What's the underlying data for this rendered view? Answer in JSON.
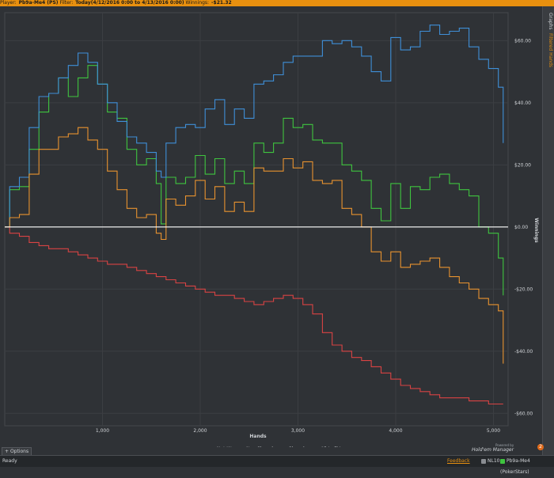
{
  "header": {
    "player_label": "Player:",
    "player_value": "Pb9a-Me4 (PS)",
    "filter_label": "Filter:",
    "filter_value": "Today(4/12/2016 0:00 to 4/13/2016 0:00)",
    "winnings_label": "Winnings:",
    "winnings_value": "-$21.32"
  },
  "sidebar": {
    "tab_graphs": "Graphs",
    "tab_filtered": "Filtered Hands"
  },
  "options_button": "Options",
  "brand": {
    "powered_by": "Powered by",
    "name": "Hold'em Manager",
    "version": "2"
  },
  "status": {
    "ready": "Ready",
    "feedback": "Feedback",
    "stake": "NL10",
    "player": "Pb9a-Me4 (PokerStars)"
  },
  "colors": {
    "net_won": "#3fc43f",
    "non_showdown": "#d94343",
    "showdown": "#3f8fd8",
    "allin_ev": "#e8922f",
    "zero_line": "#ffffff",
    "grid": "#3c3f43",
    "background": "#2f3236"
  },
  "chart_data": {
    "type": "line",
    "xlabel": "Hands",
    "ylabel": "Winnings",
    "xlim": [
      0,
      5150
    ],
    "ylim": [
      -64,
      69
    ],
    "x_ticks": [
      1000,
      2000,
      3000,
      4000,
      5000
    ],
    "x_tick_labels": [
      "1,000",
      "2,000",
      "3,000",
      "4,000",
      "5,000"
    ],
    "y_ticks": [
      60,
      40,
      20,
      0,
      -20,
      -40,
      -60
    ],
    "y_tick_labels": [
      "$60.00",
      "$40.00",
      "$20.00",
      "$0.00",
      "-$20.00",
      "-$40.00",
      "-$60.00"
    ],
    "grid": true,
    "legend": "bottom-center",
    "x": [
      0,
      50,
      150,
      250,
      350,
      450,
      550,
      650,
      750,
      850,
      950,
      1050,
      1150,
      1250,
      1350,
      1450,
      1550,
      1600,
      1650,
      1750,
      1850,
      1950,
      2050,
      2150,
      2250,
      2350,
      2450,
      2550,
      2650,
      2750,
      2850,
      2950,
      3050,
      3150,
      3250,
      3350,
      3450,
      3550,
      3650,
      3750,
      3850,
      3950,
      4050,
      4150,
      4250,
      4350,
      4450,
      4550,
      4650,
      4750,
      4850,
      4950,
      5050,
      5100
    ],
    "series": [
      {
        "name": "Net Won",
        "color_key": "net_won",
        "values": [
          0,
          12,
          13,
          25,
          37,
          43,
          48,
          42,
          48,
          52,
          46,
          37,
          35,
          25,
          20,
          22,
          14,
          1,
          16,
          14,
          16,
          23,
          17,
          22,
          14,
          18,
          14,
          27,
          24,
          27,
          35,
          32,
          33,
          28,
          27,
          27,
          20,
          18,
          15,
          6,
          2,
          14,
          6,
          13,
          12,
          16,
          17,
          14,
          12,
          10,
          0,
          -2,
          -10,
          -22
        ]
      },
      {
        "name": "Non Showdown",
        "color_key": "non_showdown",
        "values": [
          0,
          -2,
          -3,
          -5,
          -6,
          -7,
          -7,
          -8,
          -9,
          -10,
          -11,
          -12,
          -12,
          -13,
          -14,
          -15,
          -16,
          -16,
          -17,
          -18,
          -19,
          -20,
          -21,
          -22,
          -22,
          -23,
          -24,
          -25,
          -24,
          -23,
          -22,
          -23,
          -25,
          -28,
          -34,
          -38,
          -40,
          -42,
          -43,
          -45,
          -47,
          -49,
          -51,
          -52,
          -53,
          -54,
          -55,
          -55,
          -55,
          -56,
          -56,
          -57,
          -57,
          -57
        ]
      },
      {
        "name": "Showdown",
        "color_key": "showdown",
        "values": [
          0,
          13,
          16,
          32,
          42,
          43,
          48,
          52,
          56,
          53,
          46,
          40,
          34,
          29,
          27,
          24,
          18,
          16,
          27,
          32,
          33,
          32,
          38,
          41,
          33,
          38,
          35,
          46,
          47,
          49,
          53,
          55,
          55,
          55,
          60,
          59,
          60,
          58,
          55,
          50,
          47,
          61,
          57,
          58,
          63,
          65,
          62,
          63,
          64,
          58,
          54,
          51,
          45,
          27
        ]
      },
      {
        "name": "All-In EV",
        "color_key": "allin_ev",
        "values": [
          0,
          3,
          4,
          17,
          25,
          25,
          29,
          30,
          32,
          28,
          25,
          18,
          12,
          6,
          3,
          4,
          -2,
          -4,
          9,
          7,
          10,
          15,
          9,
          13,
          5,
          8,
          5,
          19,
          18,
          18,
          22,
          19,
          21,
          15,
          14,
          15,
          6,
          4,
          0,
          -8,
          -11,
          -8,
          -13,
          -12,
          -11,
          -10,
          -13,
          -16,
          -18,
          -20,
          -23,
          -25,
          -27,
          -44
        ]
      }
    ]
  }
}
